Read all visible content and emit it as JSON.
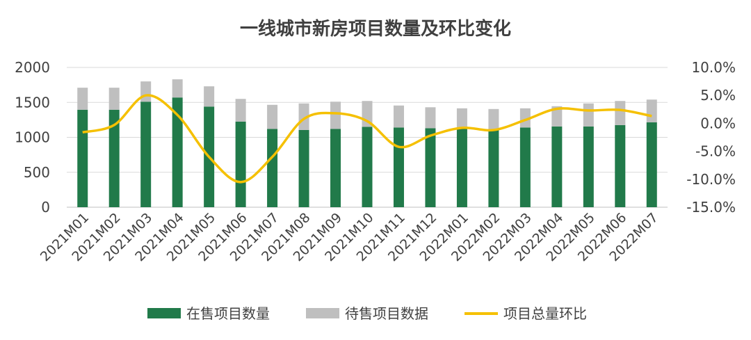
{
  "chart_data": {
    "type": "bar",
    "title": "一线城市新房项目数量及环比变化",
    "categories": [
      "2021M01",
      "2021M02",
      "2021M03",
      "2021M04",
      "2021M05",
      "2021M06",
      "2021M07",
      "2021M08",
      "2021M09",
      "2021M10",
      "2021M11",
      "2021M12",
      "2022M01",
      "2022M02",
      "2022M03",
      "2022M04",
      "2022M05",
      "2022M06",
      "2022M07"
    ],
    "series": [
      {
        "name": "在售项目数量",
        "kind": "stacked-bar",
        "axis": "left",
        "color": "#217a4a",
        "values": [
          1395,
          1395,
          1510,
          1570,
          1440,
          1225,
          1120,
          1105,
          1120,
          1150,
          1140,
          1130,
          1125,
          1100,
          1140,
          1155,
          1155,
          1175,
          1215
        ]
      },
      {
        "name": "待售项目数据",
        "kind": "stacked-bar",
        "axis": "left",
        "color": "#bfbfbf",
        "values": [
          315,
          315,
          290,
          260,
          290,
          325,
          345,
          380,
          390,
          370,
          315,
          300,
          290,
          305,
          275,
          290,
          330,
          345,
          325
        ]
      },
      {
        "name": "项目总量环比",
        "kind": "line",
        "axis": "right",
        "color": "#f5c000",
        "values": [
          -1.6,
          -0.3,
          5.0,
          1.5,
          -6.0,
          -10.5,
          -6.0,
          0.8,
          1.8,
          0.4,
          -4.2,
          -2.2,
          -0.8,
          -1.2,
          0.6,
          2.6,
          2.3,
          2.4,
          1.3
        ]
      }
    ],
    "y_left": {
      "min": 0,
      "max": 2000,
      "ticks": [
        "0",
        "500",
        "1000",
        "1500",
        "2000"
      ]
    },
    "y_right": {
      "min": -15,
      "max": 10,
      "ticks": [
        "-15.0%",
        "-10.0%",
        "-5.0%",
        "0.0%",
        "5.0%",
        "10.0%"
      ]
    },
    "grid": true,
    "legend_position": "bottom"
  }
}
